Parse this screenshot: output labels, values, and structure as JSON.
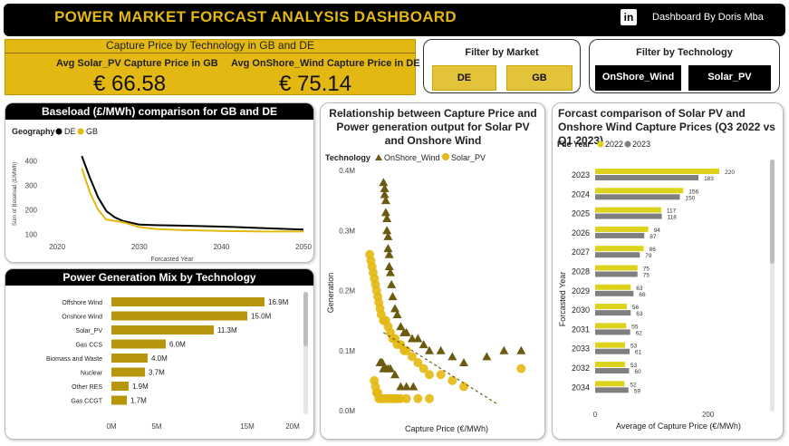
{
  "header": {
    "title": "POWER MARKET FORCAST ANALYSIS DASHBOARD",
    "linkedin_icon": "in",
    "author": "Dashboard By Doris Mba"
  },
  "kpis": {
    "title": "Capture Price by Technology in GB and DE",
    "solar_label": "Avg Solar_PV Capture Price in GB",
    "solar_value": "€ 66.58",
    "wind_label": "Avg OnShore_Wind Capture Price in DE",
    "wind_value": "€ 75.14"
  },
  "filters": {
    "market": {
      "title": "Filter by Market",
      "options": [
        "DE",
        "GB"
      ]
    },
    "technology": {
      "title": "Filter by Technology",
      "options": [
        "OnShore_Wind",
        "Solar_PV"
      ]
    }
  },
  "colors": {
    "accent": "#E3B812",
    "olive": "#6B5A10",
    "gold": "#B8960B",
    "grey": "#7F7F7F",
    "yellowbar": "#DDD21C"
  },
  "chart_data": [
    {
      "id": "baseload",
      "type": "line",
      "title": "Baseload (£/MWh) comparison for GB and DE",
      "legend_title": "Geography",
      "xlabel": "Forcasted Year",
      "ylabel": "Sum of Baseload (£/MWh)",
      "xlim": [
        2018,
        2050
      ],
      "ylim": [
        80,
        450
      ],
      "xticks": [
        "2020",
        "2030",
        "2040",
        "2050"
      ],
      "yticks": [
        "100",
        "200",
        "300",
        "400"
      ],
      "series": [
        {
          "name": "DE",
          "x": [
            2023,
            2024,
            2025,
            2026,
            2027,
            2028,
            2030,
            2032,
            2035,
            2040,
            2045,
            2050
          ],
          "y": [
            420,
            330,
            250,
            195,
            170,
            155,
            140,
            138,
            136,
            132,
            126,
            120
          ]
        },
        {
          "name": "GB",
          "x": [
            2023,
            2024,
            2025,
            2026,
            2027,
            2028,
            2030,
            2032,
            2035,
            2040,
            2045,
            2050
          ],
          "y": [
            370,
            270,
            200,
            160,
            155,
            150,
            130,
            122,
            118,
            114,
            112,
            112
          ]
        }
      ]
    },
    {
      "id": "gen_mix",
      "type": "bar",
      "orientation": "horizontal",
      "title": "Power Generation Mix by Technology",
      "categories": [
        "Offshore Wind",
        "Onshore Wind",
        "Solar_PV",
        "Gas CCS",
        "Biomass and Waste",
        "Nuclear",
        "Other RES",
        "Gas CCGT"
      ],
      "values": [
        16.9,
        15.0,
        11.3,
        6.0,
        4.0,
        3.7,
        1.9,
        1.7
      ],
      "data_labels": [
        "16.9M",
        "15.0M",
        "11.3M",
        "6.0M",
        "4.0M",
        "3.7M",
        "1.9M",
        "1.7M"
      ],
      "xticks": [
        "0M",
        "5M",
        "15M",
        "20M"
      ],
      "xlim": [
        0,
        20
      ]
    },
    {
      "id": "scatter",
      "type": "scatter",
      "title": "Relationship between Capture Price and Power generation output for Solar PV and Onshore Wind",
      "legend_title": "Technology",
      "xlabel": "Capture Price (€/MWh)",
      "ylabel": "Generation",
      "ylim": [
        0,
        0.4
      ],
      "yticks": [
        "0.0M",
        "0.1M",
        "0.2M",
        "0.3M",
        "0.4M"
      ],
      "series": [
        {
          "name": "OnShore_Wind",
          "x": [
            60,
            61,
            61,
            62,
            62,
            63,
            63,
            64,
            64,
            65,
            65,
            66,
            67,
            68,
            70,
            72,
            75,
            78,
            80,
            85,
            90,
            95,
            100,
            110,
            120,
            130,
            150,
            165,
            180,
            57,
            58,
            59,
            60,
            62,
            64,
            66,
            70,
            75,
            80,
            86
          ],
          "y": [
            0.38,
            0.37,
            0.36,
            0.35,
            0.33,
            0.32,
            0.3,
            0.29,
            0.27,
            0.26,
            0.24,
            0.23,
            0.21,
            0.19,
            0.17,
            0.16,
            0.14,
            0.13,
            0.13,
            0.12,
            0.12,
            0.11,
            0.1,
            0.1,
            0.09,
            0.08,
            0.09,
            0.1,
            0.1,
            0.08,
            0.08,
            0.08,
            0.07,
            0.07,
            0.07,
            0.07,
            0.06,
            0.04,
            0.04,
            0.04
          ]
        },
        {
          "name": "Solar_PV",
          "x": [
            48,
            49,
            50,
            51,
            52,
            53,
            54,
            55,
            56,
            57,
            58,
            60,
            62,
            64,
            66,
            68,
            70,
            72,
            75,
            78,
            80,
            85,
            90,
            95,
            100,
            110,
            120,
            130,
            52,
            53,
            54,
            55,
            56,
            58,
            60,
            62,
            65,
            68,
            70,
            72,
            75,
            80,
            90,
            100,
            180
          ],
          "y": [
            0.26,
            0.25,
            0.24,
            0.23,
            0.22,
            0.21,
            0.2,
            0.19,
            0.18,
            0.17,
            0.16,
            0.15,
            0.15,
            0.14,
            0.13,
            0.12,
            0.12,
            0.11,
            0.11,
            0.1,
            0.1,
            0.09,
            0.08,
            0.07,
            0.06,
            0.06,
            0.05,
            0.04,
            0.05,
            0.04,
            0.03,
            0.03,
            0.02,
            0.02,
            0.02,
            0.02,
            0.02,
            0.02,
            0.02,
            0.02,
            0.02,
            0.02,
            0.02,
            0.02,
            0.07
          ]
        }
      ]
    },
    {
      "id": "forecast",
      "type": "bar",
      "orientation": "horizontal",
      "title": "Forcast comparison of Solar PV and Onshore Wind Capture Prices (Q3 2022 vs Q1 2023)",
      "legend_title": "File Year",
      "xlabel": "Average of Capture Price (€/MWh)",
      "ylabel": "Forcasted Year",
      "xlim": [
        0,
        300
      ],
      "xticks": [
        "0",
        "200"
      ],
      "categories": [
        "2023",
        "2024",
        "2025",
        "2026",
        "2027",
        "2028",
        "2029",
        "2030",
        "2031",
        "2033",
        "2032",
        "2034"
      ],
      "series": [
        {
          "name": "2022",
          "values": [
            220,
            156,
            117,
            94,
            86,
            75,
            63,
            56,
            55,
            53,
            53,
            52
          ]
        },
        {
          "name": "2023",
          "values": [
            183,
            150,
            118,
            87,
            79,
            75,
            68,
            63,
            62,
            61,
            60,
            59
          ]
        }
      ]
    }
  ]
}
